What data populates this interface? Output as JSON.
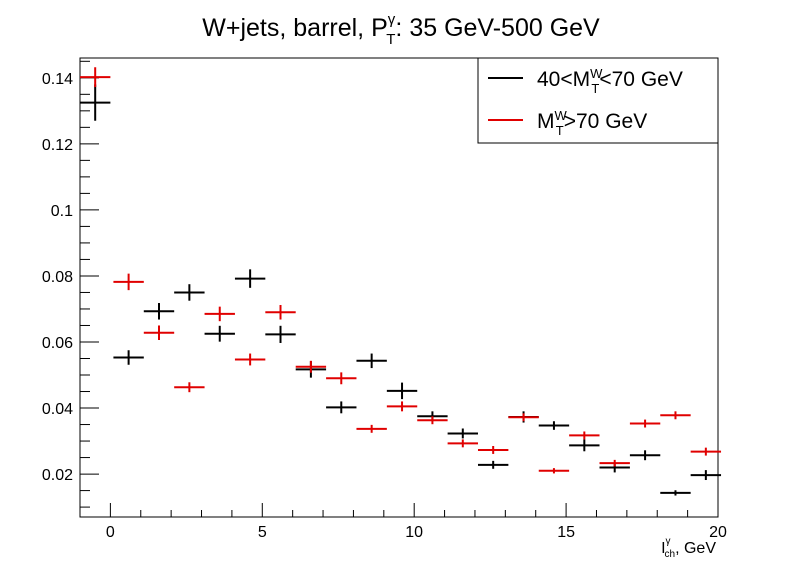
{
  "chart_data": {
    "type": "scatter",
    "title": {
      "prefix": "W+jets,  barrel,  P",
      "sup": "γ",
      "sub": "T",
      "suffix": ": 35 GeV-500 GeV"
    },
    "xlabel": {
      "base": "I",
      "sup": "γ",
      "sub": "ch",
      "suffix": ", GeV"
    },
    "xlim": [
      -1,
      20
    ],
    "ylim": [
      0.007,
      0.146
    ],
    "x_ticks": [
      0,
      5,
      10,
      15,
      20
    ],
    "x_tick_labels": [
      "0",
      "5",
      "10",
      "15",
      "20"
    ],
    "y_ticks": [
      0.02,
      0.04,
      0.06,
      0.08,
      0.1,
      0.12,
      0.14
    ],
    "y_tick_labels": [
      "0.02",
      "0.04",
      "0.06",
      "0.08",
      "0.1",
      "0.12",
      "0.14"
    ],
    "grid": false,
    "legend_position": "top-right",
    "series": [
      {
        "legend": {
          "prefix": "40<M",
          "sup": "W",
          "sub": "T",
          "suffix": "<70 GeV"
        },
        "color": "#000000",
        "x": [
          -0.5,
          0.6,
          1.6,
          2.6,
          3.6,
          4.6,
          5.6,
          6.6,
          7.6,
          8.6,
          9.6,
          10.6,
          11.6,
          12.6,
          13.6,
          14.6,
          15.6,
          16.6,
          17.6,
          18.6,
          19.6
        ],
        "y": [
          0.1325,
          0.0553,
          0.0693,
          0.075,
          0.0625,
          0.0792,
          0.0623,
          0.0517,
          0.0402,
          0.0543,
          0.0452,
          0.0375,
          0.0323,
          0.0228,
          0.0373,
          0.0347,
          0.0287,
          0.022,
          0.0257,
          0.0143,
          0.0197
        ],
        "xerr": 0.5,
        "yerr": [
          0.0055,
          0.0022,
          0.0025,
          0.0025,
          0.0024,
          0.0028,
          0.0026,
          0.0025,
          0.0018,
          0.0022,
          0.0025,
          0.0015,
          0.0015,
          0.0012,
          0.0017,
          0.0013,
          0.0018,
          0.0015,
          0.0015,
          0.0008,
          0.0015
        ]
      },
      {
        "legend": {
          "prefix": "M",
          "sup": "W",
          "sub": "T",
          "suffix": ">70 GeV"
        },
        "color": "#e00000",
        "x": [
          -0.5,
          0.6,
          1.6,
          2.6,
          3.6,
          4.6,
          5.6,
          6.6,
          7.6,
          8.6,
          9.6,
          10.6,
          11.6,
          12.6,
          13.6,
          14.6,
          15.6,
          16.6,
          17.6,
          18.6,
          19.6
        ],
        "y": [
          0.1402,
          0.0782,
          0.0628,
          0.0463,
          0.0685,
          0.0547,
          0.069,
          0.0525,
          0.049,
          0.0337,
          0.0405,
          0.0363,
          0.0293,
          0.0273,
          0.0372,
          0.021,
          0.0317,
          0.0233,
          0.0353,
          0.0378,
          0.0268
        ],
        "xerr": 0.5,
        "yerr": [
          0.003,
          0.0025,
          0.0022,
          0.0015,
          0.0022,
          0.0018,
          0.0022,
          0.0018,
          0.0018,
          0.0012,
          0.0015,
          0.0012,
          0.0012,
          0.0012,
          0.0012,
          0.0008,
          0.0012,
          0.001,
          0.0012,
          0.0012,
          0.0012
        ]
      }
    ]
  }
}
